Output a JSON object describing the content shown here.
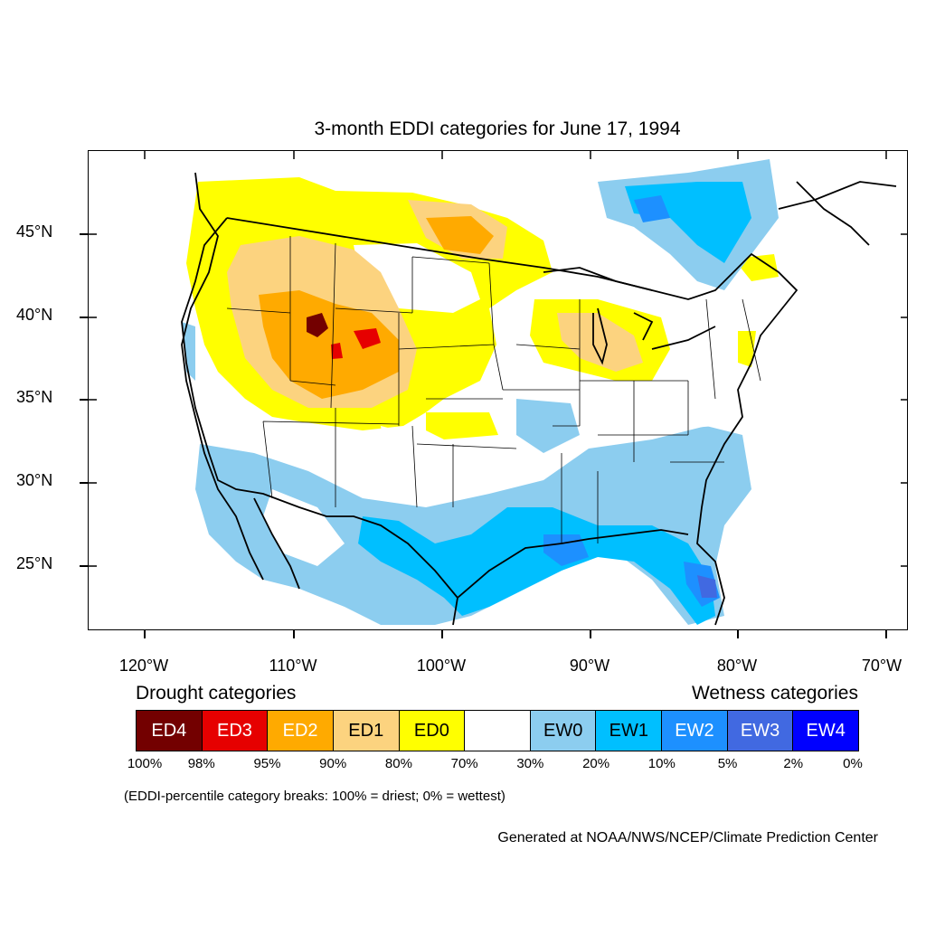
{
  "title": "3-month EDDI categories for June 17, 1994",
  "lat_labels": [
    "45°N",
    "40°N",
    "35°N",
    "30°N",
    "25°N"
  ],
  "lon_labels": [
    "120°W",
    "110°W",
    "100°W",
    "90°W",
    "80°W",
    "70°W"
  ],
  "drought_heading": "Drought categories",
  "wetness_heading": "Wetness categories",
  "legend": [
    {
      "label": "ED4",
      "color": "#730000",
      "text_color": "#ffffff"
    },
    {
      "label": "ED3",
      "color": "#e60000",
      "text_color": "#ffffff"
    },
    {
      "label": "ED2",
      "color": "#ffaa00",
      "text_color": "#ffffff"
    },
    {
      "label": "ED1",
      "color": "#fcd37f",
      "text_color": "#000000"
    },
    {
      "label": "ED0",
      "color": "#ffff00",
      "text_color": "#000000"
    },
    {
      "label": "",
      "color": "#ffffff",
      "text_color": "#000000"
    },
    {
      "label": "EW0",
      "color": "#8ccdef",
      "text_color": "#000000"
    },
    {
      "label": "EW1",
      "color": "#00bfff",
      "text_color": "#000000"
    },
    {
      "label": "EW2",
      "color": "#1d90ff",
      "text_color": "#ffffff"
    },
    {
      "label": "EW3",
      "color": "#4169e1",
      "text_color": "#ffffff"
    },
    {
      "label": "EW4",
      "color": "#0000ff",
      "text_color": "#ffffff"
    }
  ],
  "percent_breaks": [
    "100%",
    "98%",
    "95%",
    "90%",
    "80%",
    "70%",
    "30%",
    "20%",
    "10%",
    "5%",
    "2%",
    "0%"
  ],
  "note": "(EDDI-percentile category breaks: 100% = driest; 0% = wettest)",
  "credit": "Generated at NOAA/NWS/NCEP/Climate Prediction Center"
}
